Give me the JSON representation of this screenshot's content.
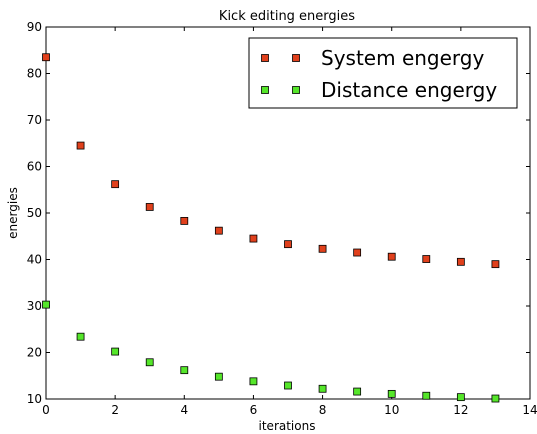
{
  "chart_data": {
    "type": "scatter",
    "title": "Kick editing energies",
    "xlabel": "iterations",
    "ylabel": "energies",
    "xlim": [
      0,
      14
    ],
    "ylim": [
      10,
      90
    ],
    "xticks": [
      "0",
      "2",
      "4",
      "6",
      "8",
      "10",
      "12",
      "14"
    ],
    "yticks": [
      "10",
      "20",
      "30",
      "40",
      "50",
      "60",
      "70",
      "80",
      "90"
    ],
    "grid": false,
    "legend_position": "top-right",
    "series": [
      {
        "name": "System engergy",
        "marker": "square",
        "color": "#e0401c",
        "x": [
          0,
          1,
          2,
          3,
          4,
          5,
          6,
          7,
          8,
          9,
          10,
          11,
          12,
          13
        ],
        "y": [
          83.5,
          64.5,
          56.2,
          51.3,
          48.3,
          46.2,
          44.5,
          43.3,
          42.3,
          41.5,
          40.6,
          40.1,
          39.5,
          39.0
        ]
      },
      {
        "name": "Distance engergy",
        "marker": "square",
        "color": "#55e62a",
        "x": [
          0,
          1,
          2,
          3,
          4,
          5,
          6,
          7,
          8,
          9,
          10,
          11,
          12,
          13
        ],
        "y": [
          30.3,
          23.4,
          20.2,
          17.9,
          16.2,
          14.8,
          13.8,
          12.9,
          12.2,
          11.6,
          11.1,
          10.7,
          10.4,
          10.1
        ]
      }
    ]
  }
}
